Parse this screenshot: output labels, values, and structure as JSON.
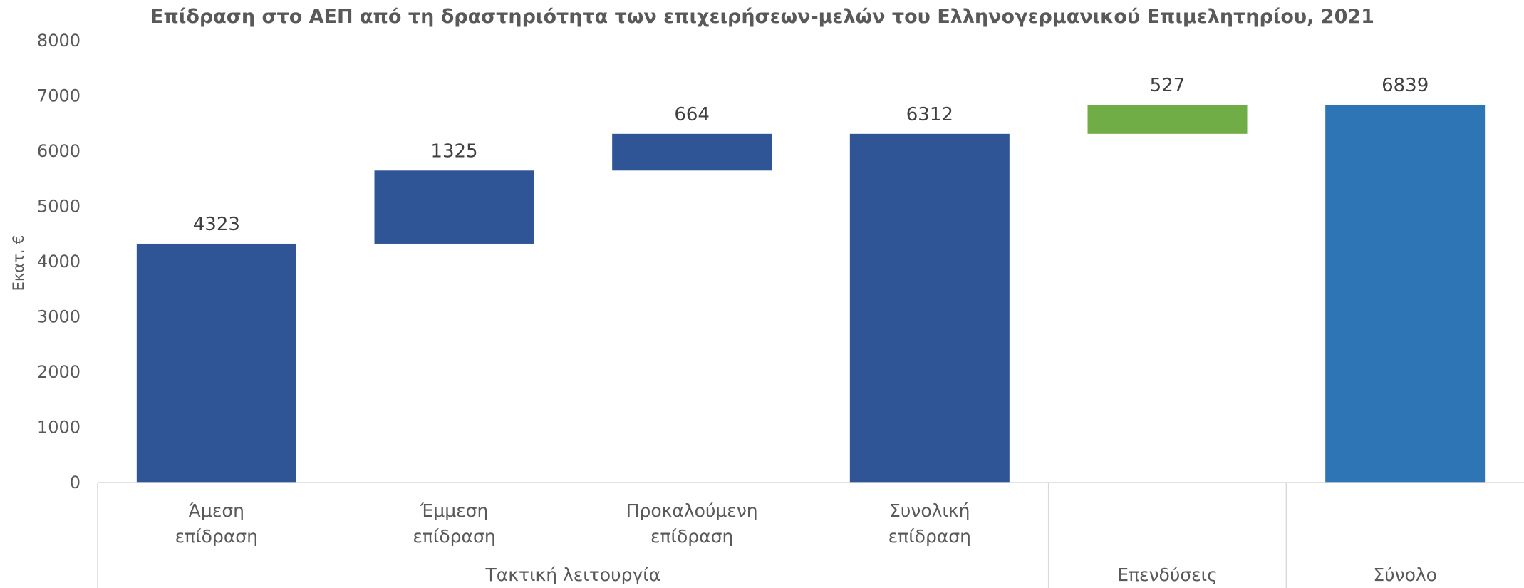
{
  "chart_data": {
    "type": "bar",
    "subtype": "waterfall",
    "title": "Επίδραση στο ΑΕΠ από τη δραστηριότητα των επιχειρήσεων-μελών του Ελληνογερμανικού Επιμελητηρίου, 2021",
    "ylabel": "Εκατ. €",
    "xlabel": "",
    "ylim": [
      0,
      8000
    ],
    "yticks": [
      0,
      1000,
      2000,
      3000,
      4000,
      5000,
      6000,
      7000,
      8000
    ],
    "grid": false,
    "legend": "none",
    "bars": [
      {
        "category": [
          "Άμεση",
          "επίδραση"
        ],
        "base": 0,
        "value": 4323,
        "label": "4323",
        "color": "#2f5597"
      },
      {
        "category": [
          "Έμμεση",
          "επίδραση"
        ],
        "base": 4323,
        "value": 1325,
        "label": "1325",
        "color": "#2f5597"
      },
      {
        "category": [
          "Προκαλούμενη",
          "επίδραση"
        ],
        "base": 5648,
        "value": 664,
        "label": "664",
        "color": "#2f5597"
      },
      {
        "category": [
          "Συνολική",
          "επίδραση"
        ],
        "base": 0,
        "value": 6312,
        "label": "6312",
        "color": "#2f5597"
      },
      {
        "category": [],
        "base": 6312,
        "value": 527,
        "label": "527",
        "color": "#70ad47"
      },
      {
        "category": [],
        "base": 0,
        "value": 6839,
        "label": "6839",
        "color": "#2e75b6"
      }
    ],
    "groups": [
      {
        "label": "Τακτική λειτουργία",
        "bars": [
          0,
          1,
          2,
          3
        ]
      },
      {
        "label": "Επενδύσεις",
        "bars": [
          4
        ]
      },
      {
        "label": "Σύνολο",
        "bars": [
          5
        ]
      }
    ]
  }
}
